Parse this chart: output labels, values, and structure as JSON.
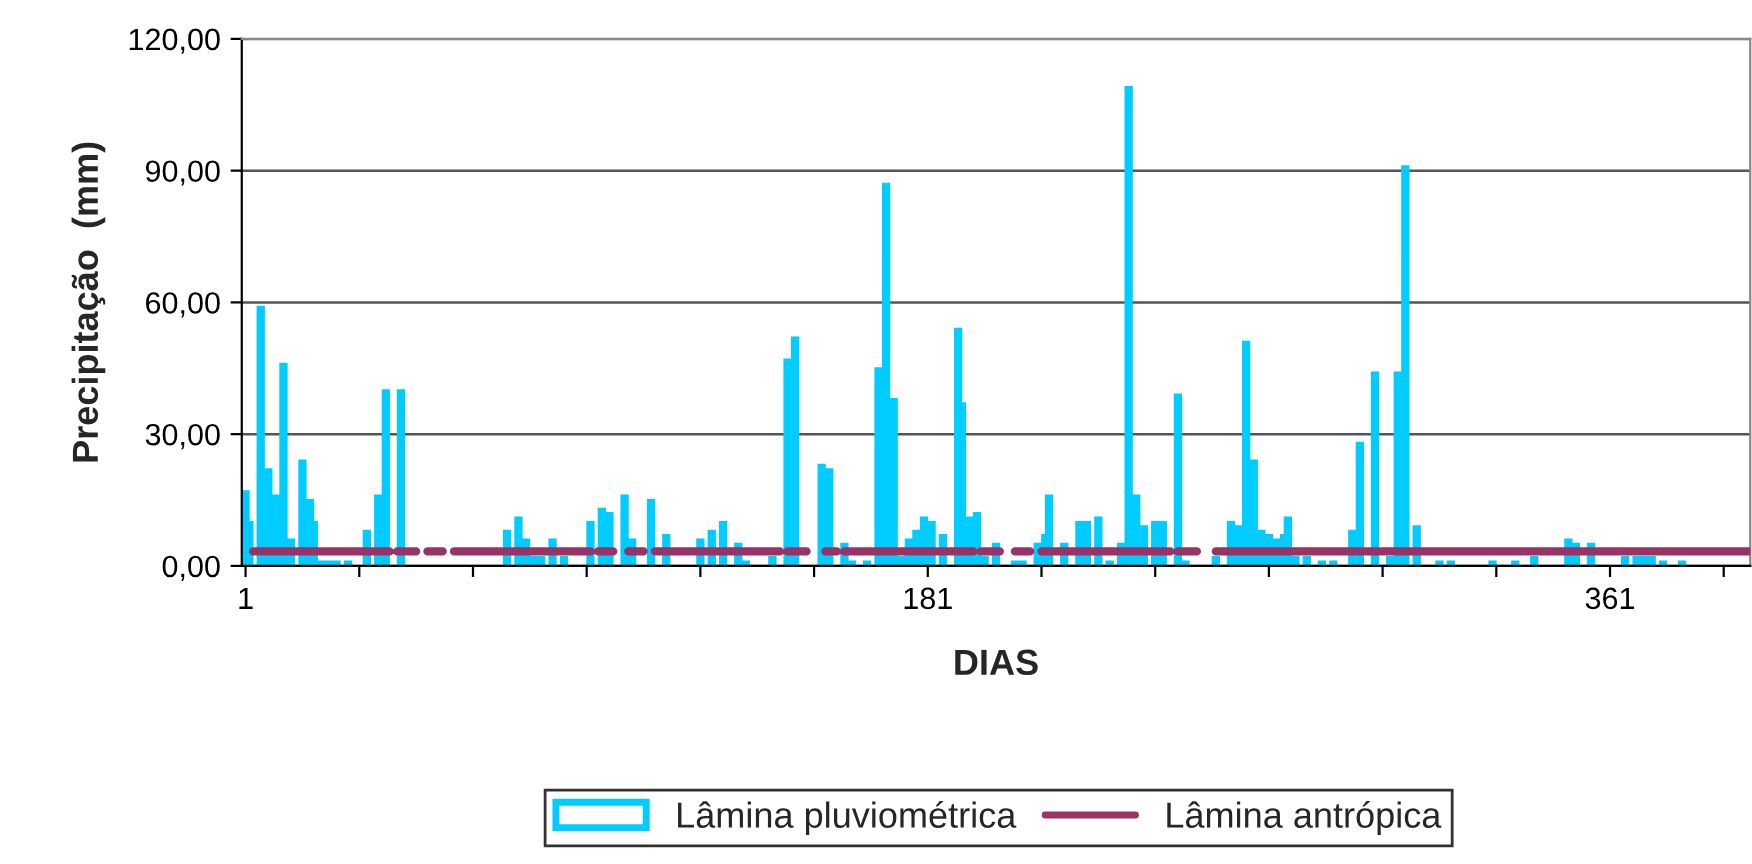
{
  "chart_data": {
    "type": "bar",
    "xlabel": "DIAS",
    "ylabel": "Precipitação  (mm)",
    "xlim": [
      0,
      398
    ],
    "xticks": [
      {
        "value": 1,
        "label": "1"
      },
      {
        "value": 31,
        "label": null
      },
      {
        "value": 61,
        "label": null
      },
      {
        "value": 91,
        "label": null
      },
      {
        "value": 121,
        "label": null
      },
      {
        "value": 151,
        "label": null
      },
      {
        "value": 181,
        "label": "181"
      },
      {
        "value": 211,
        "label": null
      },
      {
        "value": 241,
        "label": null
      },
      {
        "value": 271,
        "label": null
      },
      {
        "value": 301,
        "label": null
      },
      {
        "value": 331,
        "label": null
      },
      {
        "value": 361,
        "label": "361"
      },
      {
        "value": 391,
        "label": null
      }
    ],
    "ylim": [
      0,
      120
    ],
    "yticks": [
      {
        "value": 0,
        "label": "0,00"
      },
      {
        "value": 30,
        "label": "30,00"
      },
      {
        "value": 60,
        "label": "60,00"
      },
      {
        "value": 90,
        "label": "90,00"
      },
      {
        "value": 120,
        "label": "120,00"
      }
    ],
    "grid": "y",
    "legend": "bottom",
    "series": [
      {
        "name": "Lâmina pluviométrica",
        "color": "#00ccff",
        "x": [
          1,
          2,
          5,
          7,
          9,
          11,
          13,
          16,
          18,
          19,
          21,
          23,
          25,
          28,
          33,
          36,
          38,
          42,
          70,
          73,
          75,
          77,
          79,
          82,
          85,
          92,
          95,
          97,
          101,
          103,
          108,
          112,
          121,
          124,
          127,
          131,
          133,
          140,
          144,
          146,
          153,
          155,
          159,
          161,
          165,
          168,
          170,
          172,
          174,
          176,
          178,
          180,
          182,
          185,
          189,
          190,
          192,
          194,
          196,
          199,
          204,
          206,
          210,
          212,
          213,
          217,
          221,
          223,
          226,
          229,
          232,
          234,
          236,
          238,
          241,
          243,
          247,
          249,
          257,
          261,
          263,
          265,
          267,
          269,
          271,
          273,
          275,
          276,
          278,
          281,
          285,
          288,
          293,
          295,
          299,
          303,
          305,
          307,
          310,
          316,
          319,
          330,
          336,
          341,
          350,
          352,
          356,
          365,
          368,
          370,
          372,
          375,
          380
        ],
        "values": [
          17,
          10,
          59,
          22,
          16,
          46,
          6,
          24,
          15,
          10,
          1,
          1,
          1,
          1,
          8,
          16,
          40,
          40,
          8,
          11,
          6,
          2,
          2,
          6,
          2,
          10,
          13,
          12,
          16,
          6,
          15,
          7,
          6,
          8,
          10,
          5,
          1,
          2,
          47,
          52,
          23,
          22,
          5,
          1,
          1,
          45,
          87,
          38,
          2,
          6,
          8,
          11,
          10,
          7,
          54,
          37,
          11,
          12,
          2,
          5,
          1,
          1,
          5,
          7,
          16,
          5,
          10,
          10,
          11,
          1,
          5,
          109,
          16,
          9,
          10,
          10,
          39,
          1,
          2,
          10,
          9,
          51,
          24,
          8,
          7,
          6,
          7,
          11,
          2,
          2,
          1,
          1,
          8,
          28,
          44,
          2,
          44,
          91,
          9,
          1,
          1,
          1,
          1,
          2,
          6,
          5,
          5,
          2,
          2,
          2,
          2,
          1,
          1
        ]
      },
      {
        "name": "Lâmina antrópica",
        "type": "line",
        "color": "#993366",
        "x": [
          3,
          39,
          40,
          41,
          46,
          47,
          49,
          53,
          54,
          56,
          92,
          93,
          94,
          98,
          100,
          102,
          106,
          107,
          109,
          142,
          143,
          144,
          149,
          151,
          154,
          157,
          158,
          159,
          193,
          194,
          195,
          200,
          202,
          204,
          208,
          209,
          211,
          245,
          246,
          247,
          252,
          254,
          257,
          398
        ],
        "values": [
          3.3,
          3.3,
          null,
          3.3,
          3.3,
          null,
          3.3,
          3.3,
          null,
          3.3,
          3.3,
          null,
          3.3,
          3.3,
          null,
          3.3,
          3.3,
          null,
          3.3,
          3.3,
          null,
          3.3,
          3.3,
          null,
          3.3,
          3.3,
          null,
          3.3,
          3.3,
          null,
          3.3,
          3.3,
          null,
          3.3,
          3.3,
          null,
          3.3,
          3.3,
          null,
          3.3,
          3.3,
          null,
          3.3,
          3.3
        ]
      }
    ]
  }
}
